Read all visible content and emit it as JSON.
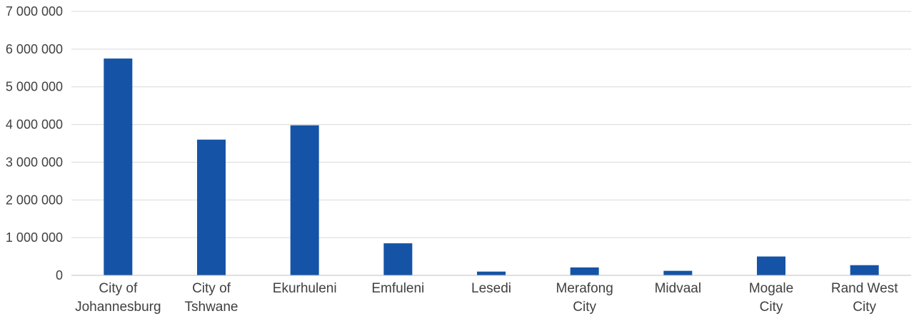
{
  "chart_data": {
    "type": "bar",
    "title": "",
    "xlabel": "",
    "ylabel": "",
    "categories": [
      [
        "City of",
        "Johannesburg"
      ],
      [
        "City of",
        "Tshwane"
      ],
      [
        "Ekurhuleni"
      ],
      [
        "Emfuleni"
      ],
      [
        "Lesedi"
      ],
      [
        "Merafong",
        "City"
      ],
      [
        "Midvaal"
      ],
      [
        "Mogale",
        "City"
      ],
      [
        "Rand West",
        "City"
      ]
    ],
    "values": [
      5750000,
      3600000,
      3980000,
      850000,
      100000,
      210000,
      120000,
      500000,
      270000
    ],
    "ylim": [
      0,
      7000000
    ],
    "yticks": [
      0,
      1000000,
      2000000,
      3000000,
      4000000,
      5000000,
      6000000,
      7000000
    ],
    "ytick_labels": [
      "0",
      "1 000 000",
      "2 000 000",
      "3 000 000",
      "4 000 000",
      "5 000 000",
      "6 000 000",
      "7 000 000"
    ],
    "grid": true,
    "legend": "none",
    "bar_color": "#1553a6"
  }
}
